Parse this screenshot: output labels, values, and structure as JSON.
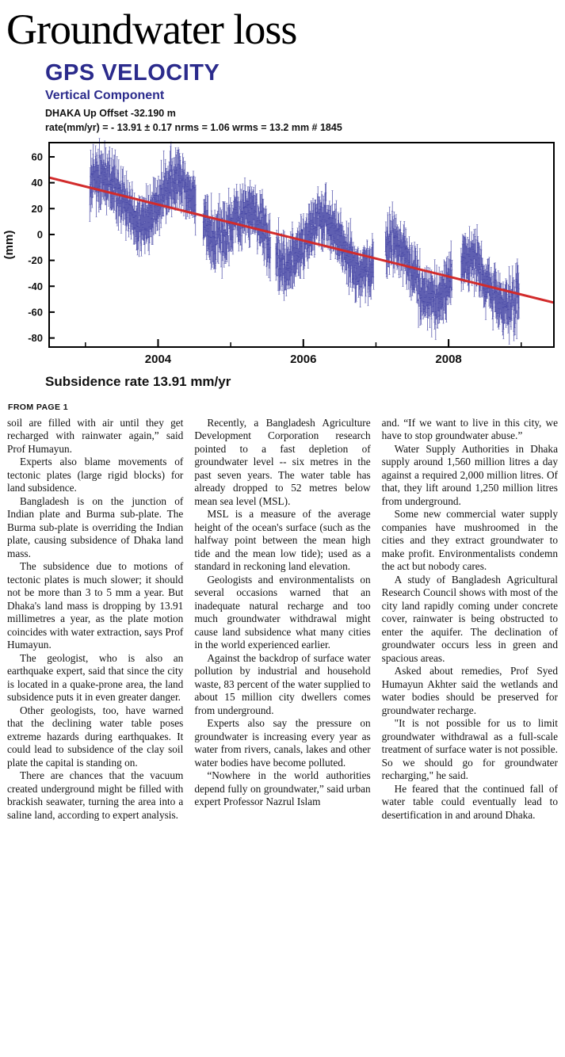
{
  "page": {
    "headline": "Groundwater loss",
    "from_page": "FROM PAGE 1"
  },
  "chart": {
    "title": "GPS VELOCITY",
    "subtitle": "Vertical Component",
    "offset_line": "DHAKA Up Offset -32.190 m",
    "stats_line": "rate(mm/yr) = - 13.91 ± 0.17 nrms = 1.06 wrms = 13.2 mm # 1845",
    "caption": "Subsidence rate 13.91 mm/yr",
    "ylabel": "(mm)"
  },
  "chart_data": {
    "type": "scatter",
    "title": "GPS VELOCITY",
    "subtitle": "Vertical Component",
    "station_annotation": "DHAKA Up Offset -32.190 m",
    "stats_annotation": "rate(mm/yr) = - 13.91 ± 0.17 nrms = 1.06 wrms = 13.2 mm # 1845",
    "ylabel": "(mm)",
    "xlabel": "",
    "rate_mm_per_yr": -13.91,
    "rate_uncertainty": 0.17,
    "nrms": 1.06,
    "wrms_mm": 13.2,
    "n_points": 1845,
    "xlim": [
      2002.5,
      2009.45
    ],
    "ylim": [
      -87,
      71
    ],
    "xticks": [
      2004,
      2006,
      2008
    ],
    "minor_xticks": [
      2003,
      2004,
      2005,
      2006,
      2007,
      2008,
      2009
    ],
    "yticks": [
      -80,
      -60,
      -40,
      -20,
      0,
      20,
      40,
      60
    ],
    "x_range": [
      2003.06,
      2008.97
    ],
    "trend": {
      "intercept_x": 2002.5,
      "intercept_y": 44,
      "slope": -13.91
    },
    "seasonal_amplitude": 18,
    "seasonal_phase": 0.02,
    "wobble": {
      "amplitude": 6,
      "period": 2.2
    },
    "noise_sd": 14,
    "error_bar": 10,
    "gaps": [
      [
        2004.52,
        2004.62
      ],
      [
        2005.55,
        2005.62
      ],
      [
        2006.97,
        2007.13
      ],
      [
        2008.05,
        2008.17
      ]
    ],
    "point_color": "#32329b",
    "trend_color": "#d22b2b",
    "frame_color": "#000000"
  },
  "article": {
    "columns": [
      {
        "paragraphs": [
          {
            "indent": false,
            "text": "soil are filled with air until they get recharged with rainwater again,” said Prof Humayun."
          },
          {
            "indent": true,
            "text": "Experts also blame movements of tectonic plates (large rigid blocks) for land subsidence."
          },
          {
            "indent": true,
            "text": "Bangladesh is on the junction of Indian plate and Burma sub-plate. The Burma sub-plate is overriding the Indian plate, causing subsidence of Dhaka land mass."
          },
          {
            "indent": true,
            "text": "The subsidence due to motions of tectonic plates is much slower; it should not be more than 3 to 5 mm a year. But Dhaka's land mass is dropping by 13.91 millimetres a year, as the plate motion coincides with water extraction, says Prof Humayun."
          },
          {
            "indent": true,
            "text": "The geologist, who is also an earthquake expert, said that since the city is located in a quake-prone area, the land subsidence puts it in even greater danger."
          },
          {
            "indent": true,
            "text": "Other geologists, too, have warned that the declining water table poses extreme hazards during earthquakes. It could lead to subsidence of the clay soil plate the capital is standing on."
          },
          {
            "indent": true,
            "text": "There are chances that the vacuum created underground might be filled with brackish seawater, turning the area into a saline land, according to expert analysis."
          }
        ]
      },
      {
        "paragraphs": [
          {
            "indent": true,
            "text": "Recently, a Bangladesh Agriculture Development Corporation research pointed to a fast depletion of groundwater level -- six metres in the past seven years. The water table has already dropped to 52 metres below mean sea level (MSL)."
          },
          {
            "indent": true,
            "text": "MSL is a measure of the average height of the ocean's surface (such as the halfway point between the mean high tide and the mean low tide); used as a standard in reckoning land elevation."
          },
          {
            "indent": true,
            "text": "Geologists and environmentalists on several occasions warned that an inadequate natural recharge and too much groundwater withdrawal might cause land subsidence what many cities in the world experienced earlier."
          },
          {
            "indent": true,
            "text": "Against the backdrop of surface water pollution by industrial and household waste, 83 percent of the water supplied to about 15 million city dwellers comes from underground."
          },
          {
            "indent": true,
            "text": "Experts also say the pressure on groundwater is increasing every year as water from rivers, canals, lakes and other water bodies have become polluted."
          },
          {
            "indent": true,
            "text": "“Nowhere in the world authorities depend fully on groundwater,” said urban expert Professor Nazrul Islam"
          }
        ]
      },
      {
        "paragraphs": [
          {
            "indent": false,
            "text": "and. “If we want to live in this city, we have to stop groundwater abuse.”"
          },
          {
            "indent": true,
            "text": "Water Supply Authorities in Dhaka supply around 1,560 million litres a day against a required 2,000 million litres. Of that, they lift around 1,250 million litres from underground."
          },
          {
            "indent": true,
            "text": "Some new commercial water supply companies have mushroomed in the cities and they extract groundwater to make profit. Environmentalists condemn the act but nobody cares."
          },
          {
            "indent": true,
            "text": "A study of Bangladesh Agricultural Research Council shows with most of the city land rapidly coming under concrete cover, rainwater is being obstructed to enter the aquifer. The declination of groundwater occurs less in green and spacious areas."
          },
          {
            "indent": true,
            "text": "Asked about remedies, Prof Syed Humayun Akhter said the wetlands and water bodies should be preserved for groundwater recharge."
          },
          {
            "indent": true,
            "text": "\"It is not possible for us to limit groundwater withdrawal as a full-scale treatment of surface water is not possible. So we should go for groundwater recharging,\" he said."
          },
          {
            "indent": true,
            "text": "He feared that the continued fall of water table could eventually lead to desertification in and around Dhaka."
          }
        ]
      }
    ]
  }
}
